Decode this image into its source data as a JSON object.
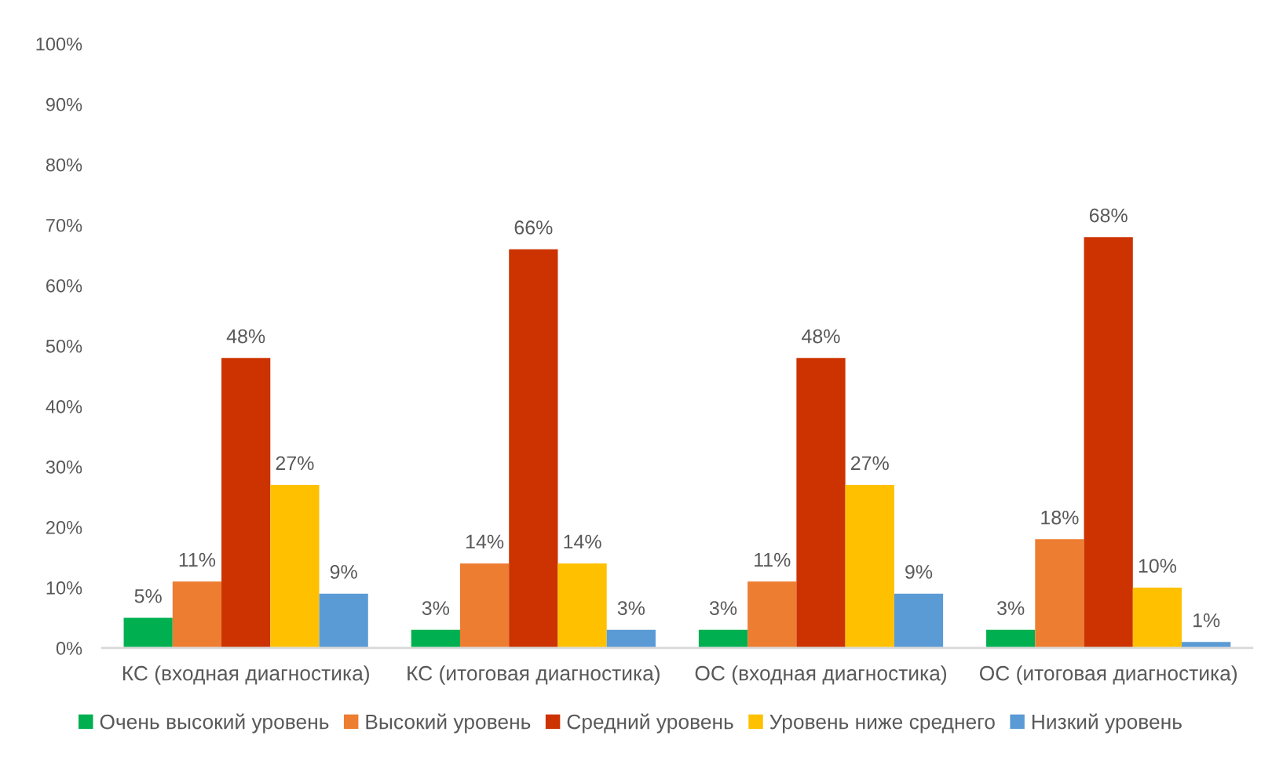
{
  "chart_data": {
    "type": "bar",
    "categories": [
      "КС (входная диагностика)",
      "КС (итоговая диагностика)",
      "ОС (входная диагностика)",
      "ОС (итоговая диагностика)"
    ],
    "series": [
      {
        "name": "Очень высокий уровень",
        "color": "#00b050",
        "values": [
          5,
          3,
          3,
          3
        ],
        "value_labels": [
          "5%",
          "3%",
          "3%",
          "3%"
        ]
      },
      {
        "name": "Высокий уровень",
        "color": "#ed7d31",
        "values": [
          11,
          14,
          11,
          18
        ],
        "value_labels": [
          "11%",
          "14%",
          "11%",
          "18%"
        ]
      },
      {
        "name": "Средний уровень",
        "color": "#cc3300",
        "values": [
          48,
          66,
          48,
          68
        ],
        "value_labels": [
          "48%",
          "66%",
          "48%",
          "68%"
        ]
      },
      {
        "name": "Уровень ниже среднего",
        "color": "#ffc000",
        "values": [
          27,
          14,
          27,
          10
        ],
        "value_labels": [
          "27%",
          "14%",
          "27%",
          "10%"
        ]
      },
      {
        "name": "Низкий уровень",
        "color": "#5b9bd5",
        "values": [
          9,
          3,
          9,
          1
        ],
        "value_labels": [
          "9%",
          "3%",
          "9%",
          "1%"
        ]
      }
    ],
    "ylim": [
      0,
      100
    ],
    "yticks": [
      {
        "value": 0,
        "label": "0%"
      },
      {
        "value": 10,
        "label": "10%"
      },
      {
        "value": 20,
        "label": "20%"
      },
      {
        "value": 30,
        "label": "30%"
      },
      {
        "value": 40,
        "label": "40%"
      },
      {
        "value": 50,
        "label": "50%"
      },
      {
        "value": 60,
        "label": "60%"
      },
      {
        "value": 70,
        "label": "70%"
      },
      {
        "value": 80,
        "label": "80%"
      },
      {
        "value": 90,
        "label": "90%"
      },
      {
        "value": 100,
        "label": "100%"
      }
    ],
    "grid": false,
    "legend": "bottom"
  }
}
